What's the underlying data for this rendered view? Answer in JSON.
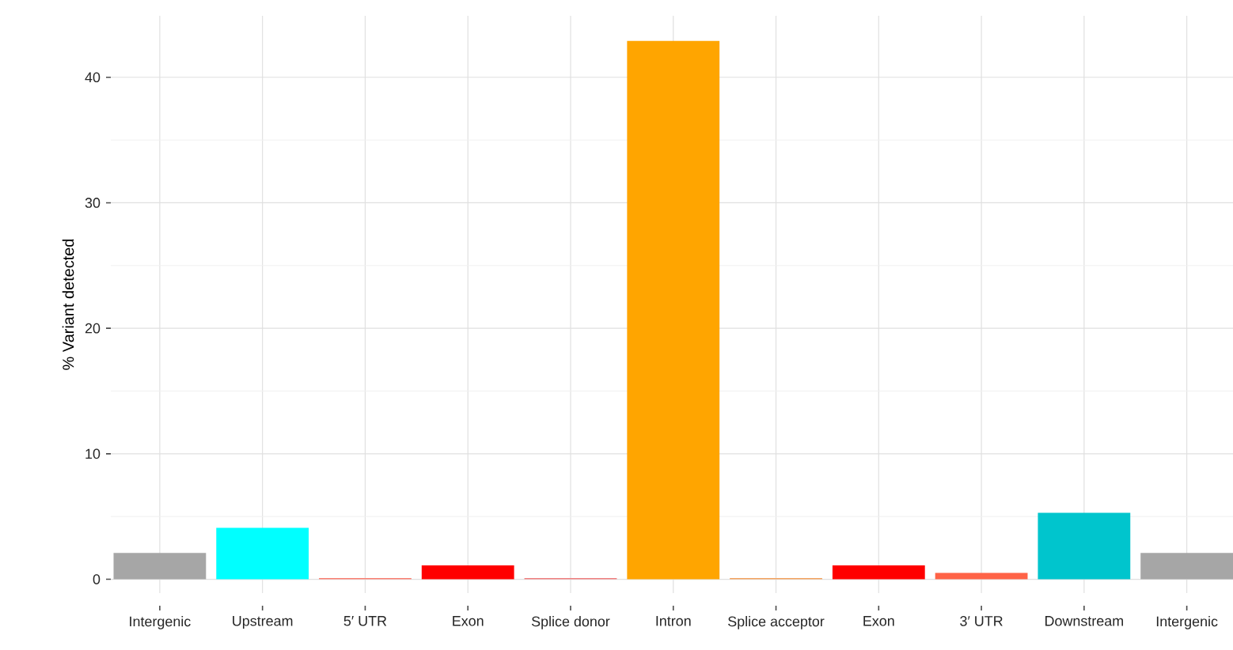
{
  "chart_data": {
    "type": "bar",
    "ylabel": "% Variant detected",
    "categories": [
      "Intergenic",
      "Upstream",
      "5′ UTR",
      "Exon",
      "Splice donor",
      "Intron",
      "Splice acceptor",
      "Exon",
      "3′ UTR",
      "Downstream",
      "Intergenic"
    ],
    "values": [
      2.1,
      4.1,
      0.1,
      1.1,
      0.1,
      42.9,
      0.1,
      1.1,
      0.5,
      5.3,
      2.1
    ],
    "colors": [
      "#a6a6a6",
      "#00ffff",
      "#fa8072",
      "#ff0000",
      "#f08080",
      "#ffa500",
      "#f4a460",
      "#ff0000",
      "#ff6347",
      "#00c5cd",
      "#a6a6a6"
    ],
    "ylim": [
      -1.1,
      44.9
    ],
    "yticks": [
      0,
      10,
      20,
      30,
      40
    ],
    "grid": true
  }
}
